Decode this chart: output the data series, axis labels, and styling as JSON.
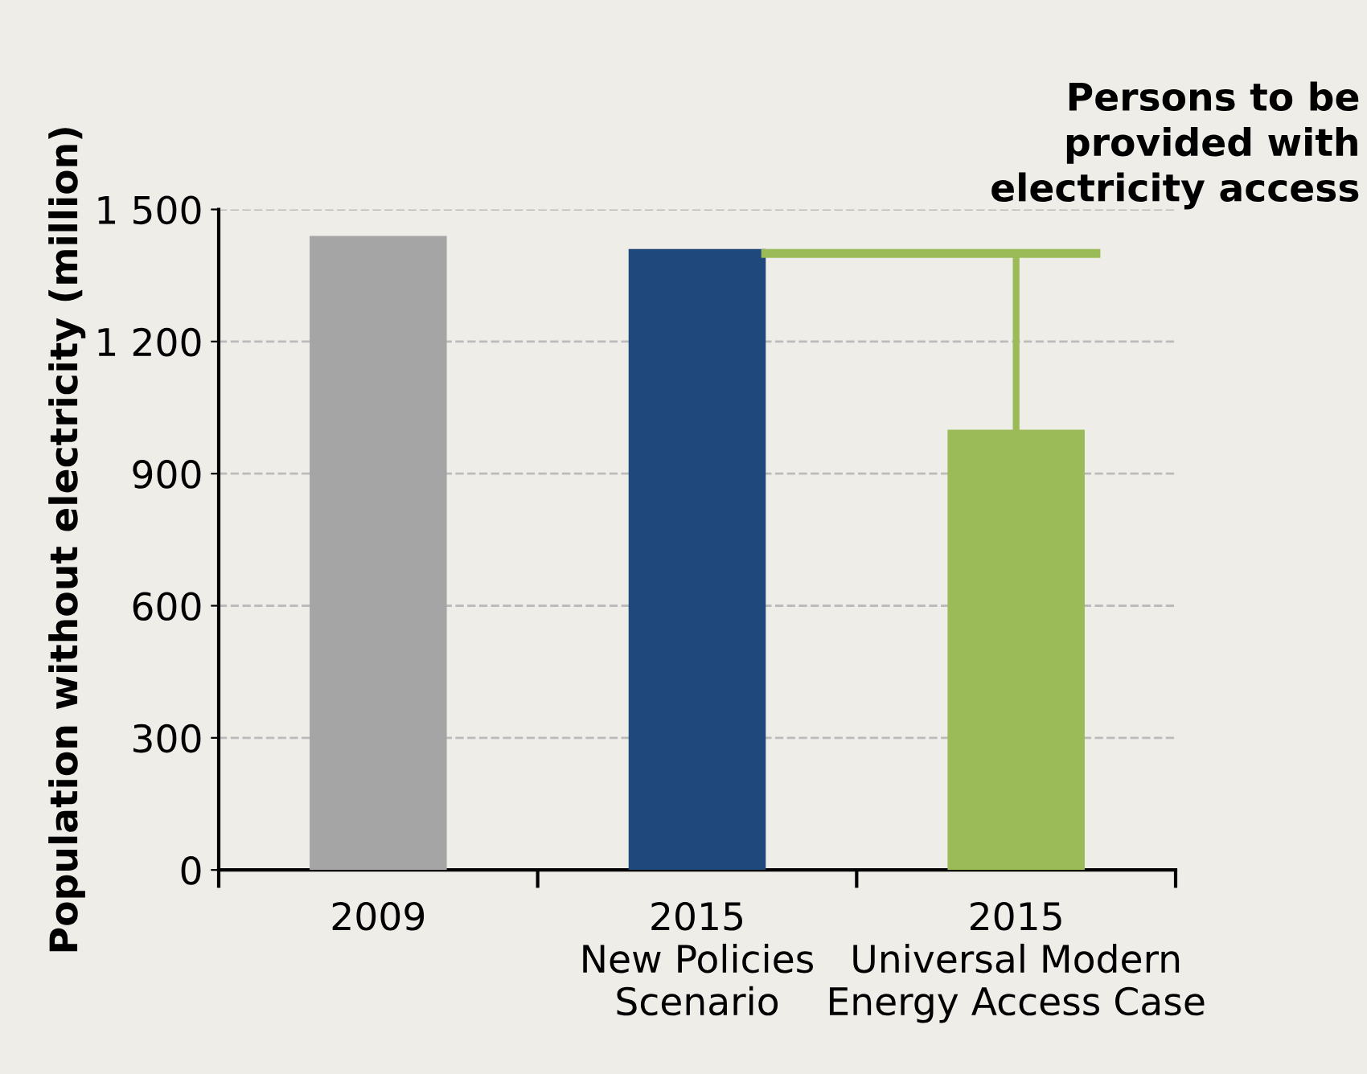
{
  "chart_data": {
    "type": "bar",
    "ylabel": "Population without electricity (million)",
    "categories": [
      "2009",
      "2015\nNew Policies\nScenario",
      "2015\nUniversal Modern\nEnergy Access Case"
    ],
    "values": [
      1440,
      1410,
      1000
    ],
    "colors": [
      "#a5a5a5",
      "#1f497d",
      "#9bbb59"
    ],
    "ylim": [
      0,
      1500
    ],
    "yticks": [
      0,
      300,
      600,
      900,
      {
        "value": 1200,
        "label": "1 200"
      },
      {
        "value": 1500,
        "label": "1 500"
      }
    ],
    "grid": "y",
    "errors": [
      null,
      null,
      [
        1000,
        1400
      ]
    ],
    "ref_lines": [
      {
        "axis": "y",
        "value": 1400,
        "label": "Persons to be\nprovided with\nelectricity access",
        "color": "#9bbb59"
      }
    ]
  }
}
